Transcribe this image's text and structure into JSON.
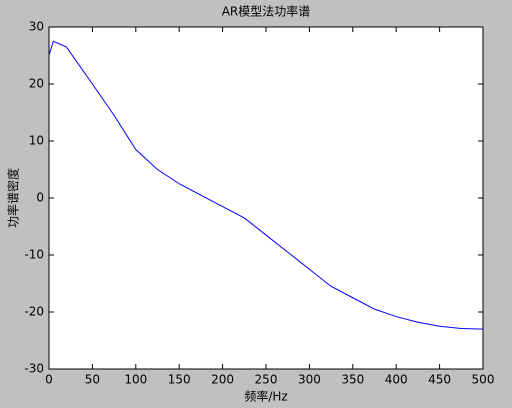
{
  "chart_data": {
    "type": "line",
    "title": "AR模型法功率谱",
    "x_label": "频率/Hz",
    "y_label": "功率谱密度",
    "x": [
      0,
      5,
      20,
      50,
      75,
      100,
      125,
      150,
      175,
      200,
      225,
      250,
      275,
      300,
      325,
      350,
      375,
      400,
      425,
      450,
      475,
      500
    ],
    "values": [
      25,
      27.5,
      26.5,
      20,
      14.5,
      8.5,
      5,
      2.5,
      0.5,
      -1.5,
      -3.5,
      -6.5,
      -9.5,
      -12.5,
      -15.5,
      -17.5,
      -19.5,
      -20.8,
      -21.8,
      -22.5,
      -22.9,
      -23
    ],
    "color": "#0000ff",
    "xlim": [
      0,
      500
    ],
    "xticks": [
      0,
      50,
      100,
      150,
      200,
      250,
      300,
      350,
      400,
      450,
      500
    ],
    "ylim": [
      -30,
      30
    ],
    "yticks": [
      -30,
      -20,
      -10,
      0,
      10,
      20,
      30
    ]
  }
}
